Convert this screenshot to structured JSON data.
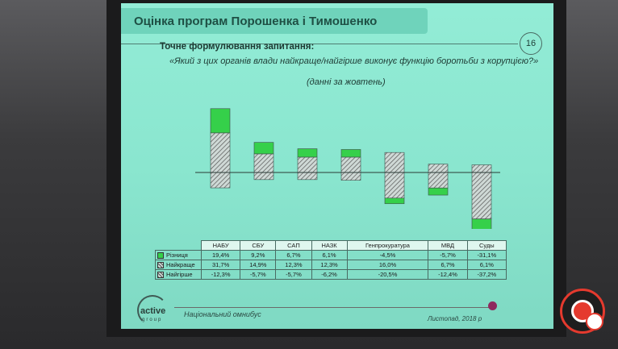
{
  "slide": {
    "title": "Оцінка програм Порошенка і Тимошенко",
    "number": "16",
    "question_label": "Точне формулювання запитання:",
    "question_text": "«Який з цих органів влади найкраще/найгірше виконує функцію боротьби з корупцією?»",
    "question_subtitle": "(данні за жовтень)",
    "footer_left": "Національний омнибус",
    "footer_right": "Листопад, 2018 р",
    "logo_text": "active",
    "logo_sub": "group"
  },
  "colors": {
    "difference": "#35d04a",
    "best": "#cfd9d6",
    "worst": "#cfd9d6",
    "axis": "#2a3a36"
  },
  "icons": {
    "watermark": "channel-logo-icon"
  },
  "chart_data": {
    "type": "bar",
    "categories": [
      "НАБУ",
      "СБУ",
      "САП",
      "НАЗК",
      "Генпрокуратура",
      "МВД",
      "Суды"
    ],
    "series": [
      {
        "name": "Різниця",
        "values": [
          19.4,
          9.2,
          6.7,
          6.1,
          -4.5,
          -5.7,
          -31.1
        ],
        "display": [
          "19,4%",
          "9,2%",
          "6,7%",
          "6,1%",
          "-4,5%",
          "-5,7%",
          "-31,1%"
        ]
      },
      {
        "name": "Найкраще",
        "values": [
          31.7,
          14.9,
          12.3,
          12.3,
          16.0,
          6.7,
          6.1
        ],
        "display": [
          "31,7%",
          "14,9%",
          "12,3%",
          "12,3%",
          "16,0%",
          "6,7%",
          "6,1%"
        ]
      },
      {
        "name": "Найгірше",
        "values": [
          -12.3,
          -5.7,
          -5.7,
          -6.2,
          -20.5,
          -12.4,
          -37.2
        ],
        "display": [
          "-12,3%",
          "-5,7%",
          "-5,7%",
          "-6,2%",
          "-20,5%",
          "-12,4%",
          "-37,2%"
        ]
      }
    ],
    "ylim": [
      -40,
      35
    ],
    "grid": false,
    "legend": "table-below"
  }
}
